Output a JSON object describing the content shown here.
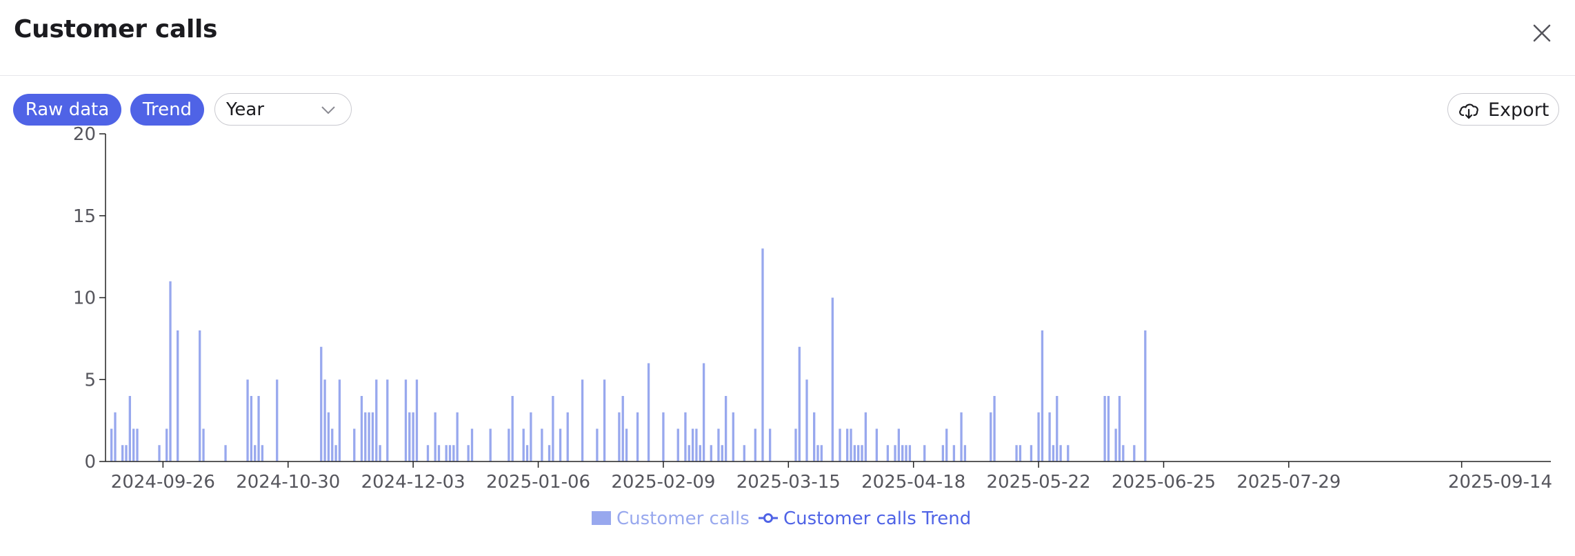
{
  "dialog": {
    "title": "Customer calls"
  },
  "toolbar": {
    "raw_data_label": "Raw data",
    "trend_label": "Trend",
    "period_select_value": "Year",
    "export_label": "Export"
  },
  "icons": {
    "close": "close-icon",
    "dropdown": "chevron-down-icon",
    "export": "cloud-download-icon"
  },
  "colors": {
    "accent": "#4f63e6",
    "bars": "#98a8ee",
    "trend": "#4f63e6",
    "legend_bars_text": "#98a8ee",
    "legend_trend_text": "#4f63e6"
  },
  "chart_data": {
    "type": "bar",
    "ylim": [
      0,
      20
    ],
    "yticks": [
      0,
      5,
      10,
      15,
      20
    ],
    "xticks": [
      "2024-09-26",
      "2024-10-30",
      "2024-12-03",
      "2025-01-06",
      "2025-02-09",
      "2025-03-15",
      "2025-04-18",
      "2025-05-22",
      "2025-06-25",
      "2025-07-29",
      "2025-09-14"
    ],
    "xtick_index": [
      14,
      48,
      82,
      116,
      150,
      184,
      218,
      252,
      286,
      320,
      367
    ],
    "grid": false,
    "legend_position": "bottom-center",
    "series": [
      {
        "name": "Customer calls",
        "type": "bar",
        "values": [
          2,
          3,
          0,
          1,
          1,
          4,
          2,
          2,
          0,
          0,
          0,
          0,
          0,
          1,
          0,
          2,
          11,
          0,
          8,
          0,
          0,
          0,
          0,
          0,
          8,
          2,
          0,
          0,
          0,
          0,
          0,
          1,
          0,
          0,
          0,
          0,
          0,
          5,
          4,
          1,
          4,
          1,
          0,
          0,
          0,
          5,
          0,
          0,
          0,
          0,
          0,
          0,
          0,
          0,
          0,
          0,
          0,
          7,
          5,
          3,
          2,
          1,
          5,
          0,
          0,
          0,
          2,
          0,
          4,
          3,
          3,
          3,
          5,
          1,
          0,
          5,
          0,
          0,
          0,
          0,
          5,
          3,
          3,
          5,
          0,
          0,
          1,
          0,
          3,
          1,
          0,
          1,
          1,
          1,
          3,
          0,
          0,
          1,
          2,
          0,
          0,
          0,
          0,
          2,
          0,
          0,
          0,
          0,
          2,
          4,
          0,
          0,
          2,
          1,
          3,
          0,
          0,
          2,
          0,
          1,
          4,
          0,
          2,
          0,
          3,
          0,
          0,
          0,
          5,
          0,
          0,
          0,
          2,
          0,
          5,
          0,
          0,
          0,
          3,
          4,
          2,
          0,
          0,
          3,
          0,
          0,
          6,
          0,
          0,
          0,
          3,
          0,
          0,
          0,
          2,
          0,
          3,
          1,
          2,
          2,
          1,
          6,
          0,
          1,
          0,
          2,
          1,
          4,
          0,
          3,
          0,
          0,
          1,
          0,
          0,
          2,
          0,
          13,
          0,
          2,
          0,
          0,
          0,
          0,
          0,
          0,
          2,
          7,
          0,
          5,
          0,
          3,
          1,
          1,
          0,
          0,
          10,
          0,
          2,
          0,
          2,
          2,
          1,
          1,
          1,
          3,
          0,
          0,
          2,
          0,
          0,
          1,
          0,
          1,
          2,
          1,
          1,
          1,
          0,
          0,
          0,
          1,
          0,
          0,
          0,
          0,
          1,
          2,
          0,
          1,
          0,
          3,
          1,
          0,
          0,
          0,
          0,
          0,
          0,
          3,
          4,
          0,
          0,
          0,
          0,
          0,
          1,
          1,
          0,
          0,
          1,
          0,
          3,
          8,
          0,
          3,
          1,
          4,
          1,
          0,
          1,
          0,
          0,
          0,
          0,
          0,
          0,
          0,
          0,
          0,
          4,
          4,
          0,
          2,
          4,
          1,
          0,
          0,
          1,
          0,
          0,
          8,
          0,
          0,
          0,
          0,
          0,
          0,
          0,
          0,
          0,
          0,
          0,
          0,
          0,
          0,
          0,
          0,
          0,
          0,
          0,
          0,
          0,
          0,
          0,
          0,
          0,
          0,
          0,
          0,
          0,
          0,
          0,
          0,
          0,
          0,
          0,
          0,
          0,
          0,
          0,
          0,
          0,
          0,
          0,
          0,
          0,
          0,
          0,
          0,
          0,
          0,
          0,
          0,
          0,
          0,
          0,
          0,
          0,
          0,
          0,
          0,
          0,
          0,
          0,
          0,
          0,
          0,
          0,
          0,
          0,
          0,
          0,
          0,
          0,
          0,
          0,
          0,
          0,
          0,
          0,
          0,
          0,
          0,
          0,
          0,
          0,
          0,
          0,
          0,
          0,
          0,
          0,
          0,
          0,
          0,
          0,
          0,
          0,
          0,
          0,
          0,
          0,
          0,
          0,
          0,
          0,
          0,
          0,
          0,
          0
        ]
      },
      {
        "name": "Customer calls Trend",
        "type": "line",
        "values": []
      }
    ]
  }
}
